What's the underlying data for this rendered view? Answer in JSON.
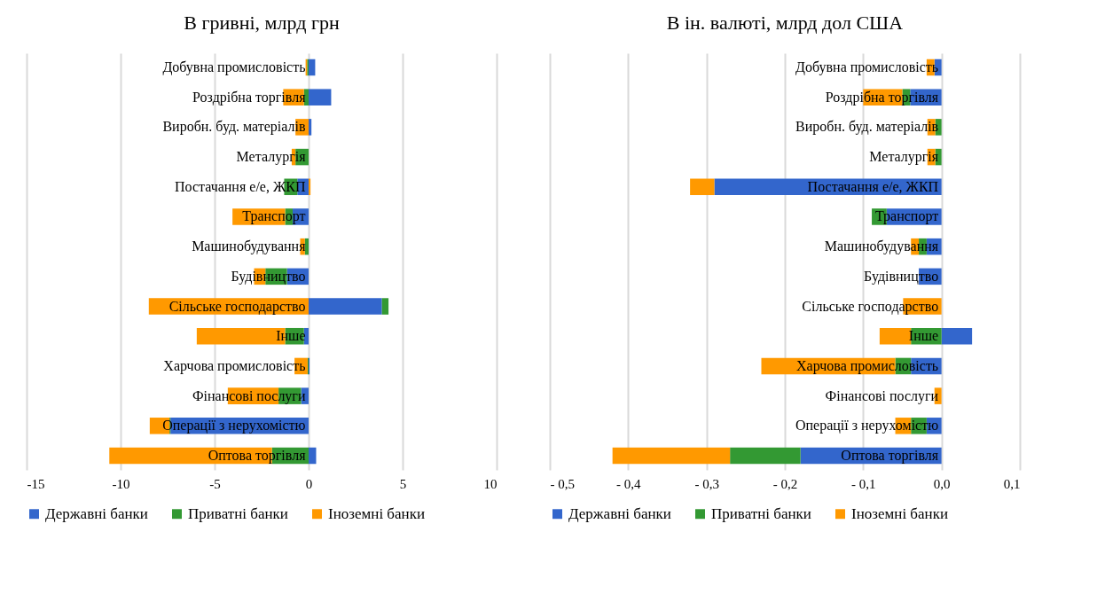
{
  "chart_data": [
    {
      "type": "bar",
      "orientation": "horizontal",
      "stacked": true,
      "title": "В гривні, млрд грн",
      "grid": "x",
      "legend": "bottom",
      "categories": [
        "Добувна промисловість",
        "Роздрібна торгівля",
        "Виробн. буд. матеріалів",
        "Металургія",
        "Постачання е/е, ЖКП",
        "Транспорт",
        "Машинобудування",
        "Будівництво",
        "Сільське господарство",
        "Інше",
        "Харчова промисловість",
        "Фінансові послуги",
        "Операції з нерухомістю",
        "Оптова торгівля"
      ],
      "xlim": [
        -15,
        10
      ],
      "xticks": [
        -15,
        -10,
        -5,
        0,
        5,
        10
      ],
      "series": [
        {
          "name": "Державні банки",
          "color": "#3366cc",
          "values": [
            0.35,
            1.2,
            0.15,
            0,
            -0.6,
            -0.85,
            0,
            -1.15,
            3.9,
            -0.25,
            0.05,
            -0.4,
            -7.35,
            0.4
          ]
        },
        {
          "name": "Приватні банки",
          "color": "#339933",
          "values": [
            -0.08,
            -0.25,
            0,
            -0.7,
            -0.7,
            -0.4,
            -0.2,
            -1.15,
            0.35,
            -1.0,
            -0.05,
            -1.2,
            -0.05,
            -1.95
          ]
        },
        {
          "name": "Іноземні банки",
          "color": "#ff9900",
          "values": [
            -0.08,
            -1.1,
            -0.7,
            -0.2,
            0.1,
            -2.8,
            -0.25,
            -0.6,
            -8.5,
            -4.7,
            -0.7,
            -2.7,
            -1.05,
            -8.65
          ]
        }
      ]
    },
    {
      "type": "bar",
      "orientation": "horizontal",
      "stacked": true,
      "title": "В ін. валюті, млрд дол США",
      "grid": "x",
      "legend": "bottom",
      "categories": [
        "Добувна промисловість",
        "Роздрібна торгівля",
        "Виробн. буд. матеріалів",
        "Металургія",
        "Постачання е/е, ЖКП",
        "Транспорт",
        "Машинобудування",
        "Будівництво",
        "Сільське господарство",
        "Інше",
        "Харчова промисловість",
        "Фінансові послуги",
        "Операції з нерухомістю",
        "Оптова торгівля"
      ],
      "xlim": [
        -0.5,
        0.1
      ],
      "xticks": [
        {
          "value": -0.5,
          "label": "- 0,5"
        },
        {
          "value": -0.4,
          "label": "- 0,4"
        },
        {
          "value": -0.3,
          "label": "- 0,3"
        },
        {
          "value": -0.2,
          "label": "- 0,2"
        },
        {
          "value": -0.1,
          "label": "- 0,1"
        },
        {
          "value": 0,
          "label": "0,0"
        },
        {
          "value": 0.1,
          "label": "0,1"
        }
      ],
      "series": [
        {
          "name": "Державні банки",
          "color": "#3366cc",
          "values": [
            -0.009,
            -0.04,
            0,
            0,
            -0.29,
            -0.07,
            -0.019,
            -0.029,
            0,
            0.039,
            -0.039,
            0,
            -0.019,
            -0.18
          ]
        },
        {
          "name": "Приватні банки",
          "color": "#339933",
          "values": [
            0,
            -0.01,
            -0.008,
            -0.008,
            0,
            -0.019,
            -0.01,
            0,
            0,
            -0.039,
            -0.02,
            0,
            -0.02,
            -0.09
          ]
        },
        {
          "name": "Іноземні банки",
          "color": "#ff9900",
          "values": [
            -0.01,
            -0.05,
            -0.01,
            -0.01,
            -0.031,
            0,
            -0.01,
            0,
            -0.049,
            -0.04,
            -0.171,
            -0.009,
            -0.02,
            -0.15
          ]
        }
      ]
    }
  ]
}
